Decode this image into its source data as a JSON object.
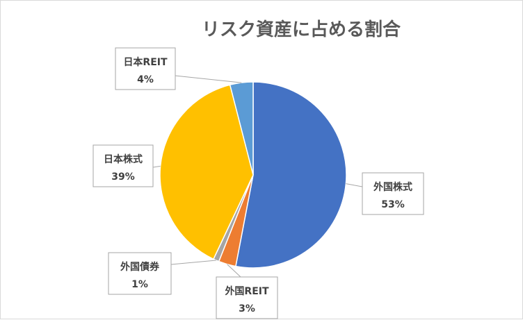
{
  "chart_data": {
    "type": "pie",
    "title": "リスク資産に占める割合",
    "slices": [
      {
        "name": "外国株式",
        "value": 53,
        "label": "53%",
        "color": "#4472C4"
      },
      {
        "name": "外国REIT",
        "value": 3,
        "label": "3%",
        "color": "#ED7D31"
      },
      {
        "name": "外国債券",
        "value": 1,
        "label": "1%",
        "color": "#A5A5A5"
      },
      {
        "name": "日本株式",
        "value": 39,
        "label": "39%",
        "color": "#FFC000"
      },
      {
        "name": "日本REIT",
        "value": 4,
        "label": "4%",
        "color": "#5B9BD5"
      }
    ],
    "legend": "none",
    "start_angle": "12 o'clock",
    "direction": "clockwise"
  }
}
